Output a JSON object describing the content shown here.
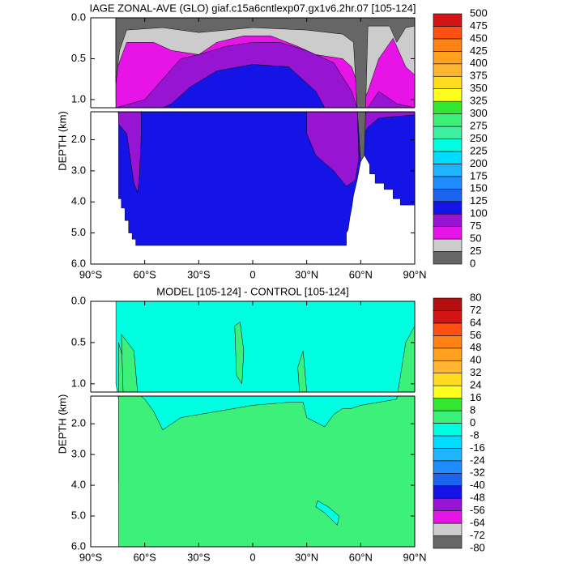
{
  "chart_data": [
    {
      "type": "contour",
      "title": "IAGE ZONAL-AVE (GLO) giaf.c15a6cntlexp07.gx1v6.2hr.07 [105-124]",
      "y_label": "DEPTH (km)",
      "xlim": [
        -90,
        90
      ],
      "xticks": [
        {
          "value": -90,
          "label": "90°S"
        },
        {
          "value": -60,
          "label": "60°S"
        },
        {
          "value": -30,
          "label": "30°S"
        },
        0,
        {
          "value": 30,
          "label": "30°N"
        },
        {
          "value": 60,
          "label": "60°N"
        },
        {
          "value": 90,
          "label": "90°N"
        }
      ],
      "ylim": [
        0,
        6
      ],
      "yticks": [
        {
          "value": 0,
          "label": "0.0"
        },
        {
          "value": 0.5,
          "label": "0.5"
        },
        {
          "value": 1,
          "label": "1.0"
        },
        {
          "value": 2,
          "label": "2.0"
        },
        {
          "value": 3,
          "label": "3.0"
        },
        {
          "value": 4,
          "label": "4.0"
        },
        {
          "value": 5,
          "label": "5.0"
        },
        {
          "value": 6,
          "label": "6.0"
        }
      ],
      "levels": [
        0,
        25,
        50,
        75,
        100,
        125,
        150,
        175,
        200,
        225,
        250,
        275,
        300,
        325,
        350,
        375,
        400,
        425,
        450,
        475,
        500
      ],
      "colors": [
        "#666666",
        "#cccccc",
        "#e614e6",
        "#9614d2",
        "#1414e6",
        "#1c64f0",
        "#1e8cff",
        "#1eb4ff",
        "#00dcff",
        "#00ffe0",
        "#3cf0a0",
        "#3cf07a",
        "#32e632",
        "#ffff1e",
        "#ffdc1e",
        "#ffb432",
        "#ffa01e",
        "#ff8214",
        "#ff5014",
        "#d21414"
      ]
    },
    {
      "type": "contour",
      "title": "MODEL [105-124] - CONTROL [105-124]",
      "y_label": "DEPTH (km)",
      "xlim": [
        -90,
        90
      ],
      "xticks": [
        {
          "value": -90,
          "label": "90°S"
        },
        {
          "value": -60,
          "label": "60°S"
        },
        {
          "value": -30,
          "label": "30°S"
        },
        0,
        {
          "value": 30,
          "label": "30°N"
        },
        {
          "value": 60,
          "label": "60°N"
        },
        {
          "value": 90,
          "label": "90°N"
        }
      ],
      "ylim": [
        0,
        6
      ],
      "yticks": [
        {
          "value": 0,
          "label": "0.0"
        },
        {
          "value": 0.5,
          "label": "0.5"
        },
        {
          "value": 1,
          "label": "1.0"
        },
        {
          "value": 2,
          "label": "2.0"
        },
        {
          "value": 3,
          "label": "3.0"
        },
        {
          "value": 4,
          "label": "4.0"
        },
        {
          "value": 5,
          "label": "5.0"
        },
        {
          "value": 6,
          "label": "6.0"
        }
      ],
      "levels": [
        -80,
        -72,
        -64,
        -56,
        -48,
        -40,
        -32,
        -24,
        -16,
        -8,
        0,
        8,
        16,
        24,
        32,
        40,
        48,
        56,
        64,
        72,
        80
      ],
      "colors": [
        "#666666",
        "#cccccc",
        "#e614e6",
        "#9614d2",
        "#1414e6",
        "#1c64f0",
        "#1e8cff",
        "#1eb4ff",
        "#00dcff",
        "#00ffe0",
        "#3cf07a",
        "#32e632",
        "#ffff1e",
        "#ffdc1e",
        "#ffb432",
        "#ffa01e",
        "#ff8214",
        "#ff5014",
        "#d21414",
        "#b41010"
      ]
    }
  ]
}
